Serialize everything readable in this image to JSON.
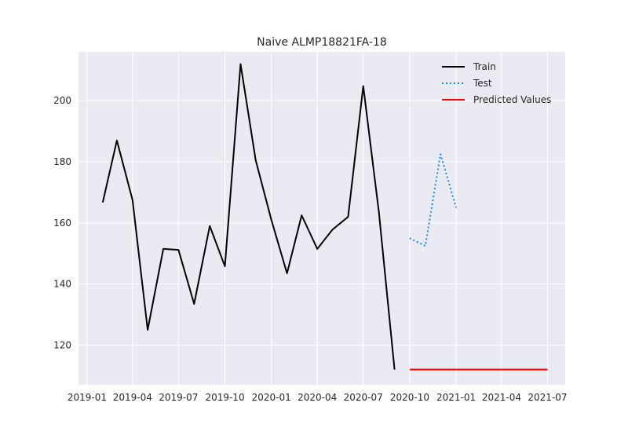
{
  "chart_data": {
    "type": "line",
    "title": "Naive ALMP18821FA-18",
    "xlabel": "",
    "ylabel": "",
    "x_type": "date",
    "xlim": [
      "2018-12-15",
      "2021-08-05"
    ],
    "ylim": [
      107,
      216
    ],
    "x_ticks": [
      "2019-01",
      "2019-04",
      "2019-07",
      "2019-10",
      "2020-01",
      "2020-04",
      "2020-07",
      "2020-10",
      "2021-01",
      "2021-04",
      "2021-07"
    ],
    "y_ticks": [
      120,
      140,
      160,
      180,
      200
    ],
    "grid": true,
    "legend_position": "top-right",
    "series": [
      {
        "name": "Train",
        "color": "#000000",
        "style": "solid",
        "x": [
          "2019-02-01",
          "2019-03-01",
          "2019-04-01",
          "2019-05-01",
          "2019-06-01",
          "2019-07-01",
          "2019-08-01",
          "2019-09-01",
          "2019-10-01",
          "2019-11-01",
          "2019-12-01",
          "2020-01-01",
          "2020-02-01",
          "2020-03-01",
          "2020-04-01",
          "2020-05-01",
          "2020-06-01",
          "2020-07-01",
          "2020-08-01",
          "2020-09-01"
        ],
        "values": [
          166.7,
          187.0,
          167.5,
          125.0,
          151.5,
          151.2,
          133.5,
          159.0,
          145.8,
          212.0,
          180.5,
          161.0,
          143.5,
          162.5,
          151.5,
          157.8,
          162.0,
          204.8,
          163.5,
          112.0
        ]
      },
      {
        "name": "Test",
        "color": "#1e88e5",
        "style": "dotted",
        "x": [
          "2020-10-01",
          "2020-11-01",
          "2020-12-01",
          "2021-01-01"
        ],
        "values": [
          155.0,
          152.5,
          182.5,
          165.0
        ]
      },
      {
        "name": "Predicted Values",
        "color": "#ff0000",
        "style": "solid",
        "x": [
          "2020-10-01",
          "2020-11-01",
          "2020-12-01",
          "2021-01-01",
          "2021-02-01",
          "2021-03-01",
          "2021-04-01",
          "2021-05-01",
          "2021-06-01",
          "2021-07-01"
        ],
        "values": [
          112.0,
          112.0,
          112.0,
          112.0,
          112.0,
          112.0,
          112.0,
          112.0,
          112.0,
          112.0
        ]
      }
    ]
  }
}
